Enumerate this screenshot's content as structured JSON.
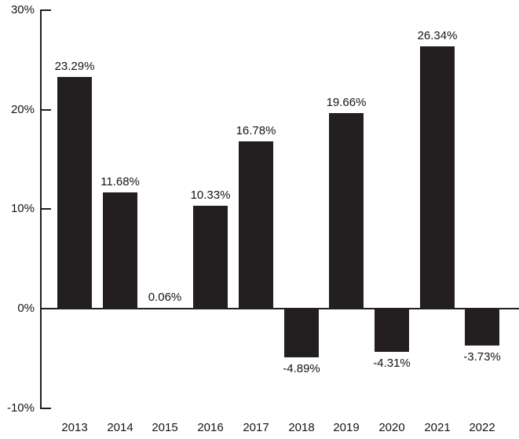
{
  "chart_data": {
    "type": "bar",
    "title": "",
    "xlabel": "",
    "ylabel": "",
    "categories": [
      "2013",
      "2014",
      "2015",
      "2016",
      "2017",
      "2018",
      "2019",
      "2020",
      "2021",
      "2022"
    ],
    "values": [
      23.29,
      11.68,
      0.06,
      10.33,
      16.78,
      -4.89,
      19.66,
      -4.31,
      26.34,
      -3.73
    ],
    "value_labels": [
      "23.29%",
      "11.68%",
      "0.06%",
      "10.33%",
      "16.78%",
      "-4.89%",
      "19.66%",
      "-4.31%",
      "26.34%",
      "-3.73%"
    ],
    "yticks": [
      {
        "value": 30,
        "label": "30%"
      },
      {
        "value": 20,
        "label": "20%"
      },
      {
        "value": 10,
        "label": "10%"
      },
      {
        "value": 0,
        "label": "0%"
      },
      {
        "value": -10,
        "label": "-10%"
      }
    ],
    "ylim": [
      -10,
      30
    ],
    "grid": false,
    "legend": "none",
    "bar_color": "#231f20",
    "axis_color": "#231f20",
    "text_color": "#161414",
    "background_color": "#ffffff"
  }
}
